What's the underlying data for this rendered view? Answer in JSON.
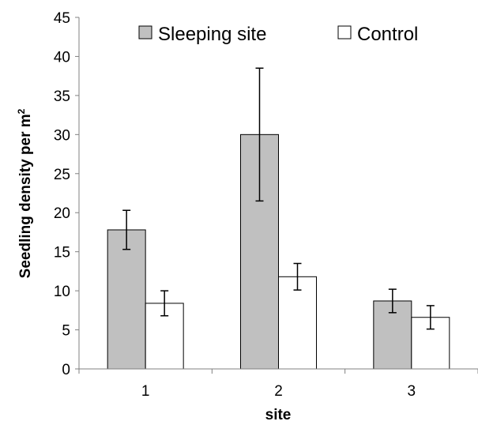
{
  "chart_data": {
    "type": "bar",
    "title": "",
    "xlabel": "site",
    "ylabel": "Seedling density per m",
    "ylabel_superscript": "2",
    "categories": [
      "1",
      "2",
      "3"
    ],
    "ylim": [
      0,
      45
    ],
    "yticks": [
      0,
      5,
      10,
      15,
      20,
      25,
      30,
      35,
      40,
      45
    ],
    "legend_position": "top",
    "grid": false,
    "series": [
      {
        "name": "Sleeping site",
        "color": "#c0c0c0",
        "values": [
          17.8,
          30.0,
          8.7
        ],
        "error": [
          2.5,
          8.5,
          1.5
        ]
      },
      {
        "name": "Control",
        "color": "#ffffff",
        "values": [
          8.4,
          11.8,
          6.6
        ],
        "error": [
          1.6,
          1.7,
          1.5
        ]
      }
    ]
  }
}
